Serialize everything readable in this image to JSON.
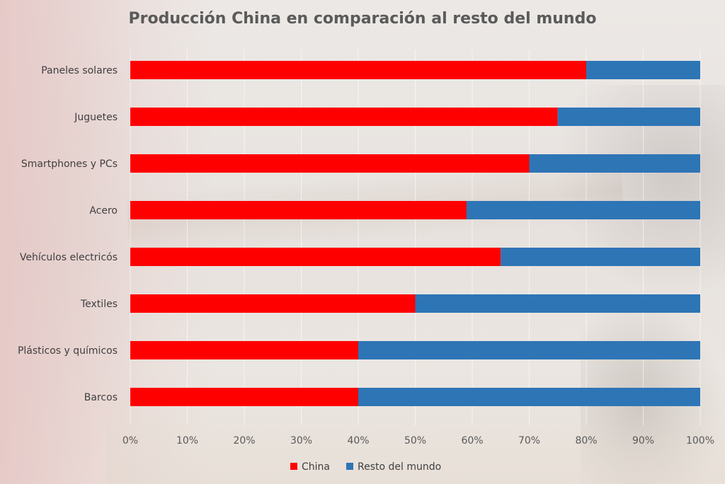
{
  "chart_data": {
    "type": "bar",
    "orientation": "horizontal",
    "stacked": true,
    "title": "Producción China en comparación al resto del mundo",
    "categories": [
      "Paneles solares",
      "Juguetes",
      "Smartphones y PCs",
      "Acero",
      "Vehículos electricós",
      "Textiles",
      "Plásticos y químicos",
      "Barcos"
    ],
    "series": [
      {
        "name": "China",
        "color": "#ff0000",
        "values": [
          80,
          75,
          70,
          59,
          65,
          50,
          40,
          40
        ]
      },
      {
        "name": "Resto del mundo",
        "color": "#2e75b6",
        "values": [
          20,
          25,
          30,
          41,
          35,
          50,
          60,
          60
        ]
      }
    ],
    "xlim": [
      0,
      100
    ],
    "xticks": [
      "0%",
      "10%",
      "20%",
      "30%",
      "40%",
      "50%",
      "60%",
      "70%",
      "80%",
      "90%",
      "100%"
    ],
    "grid": true,
    "legend_position": "bottom"
  }
}
